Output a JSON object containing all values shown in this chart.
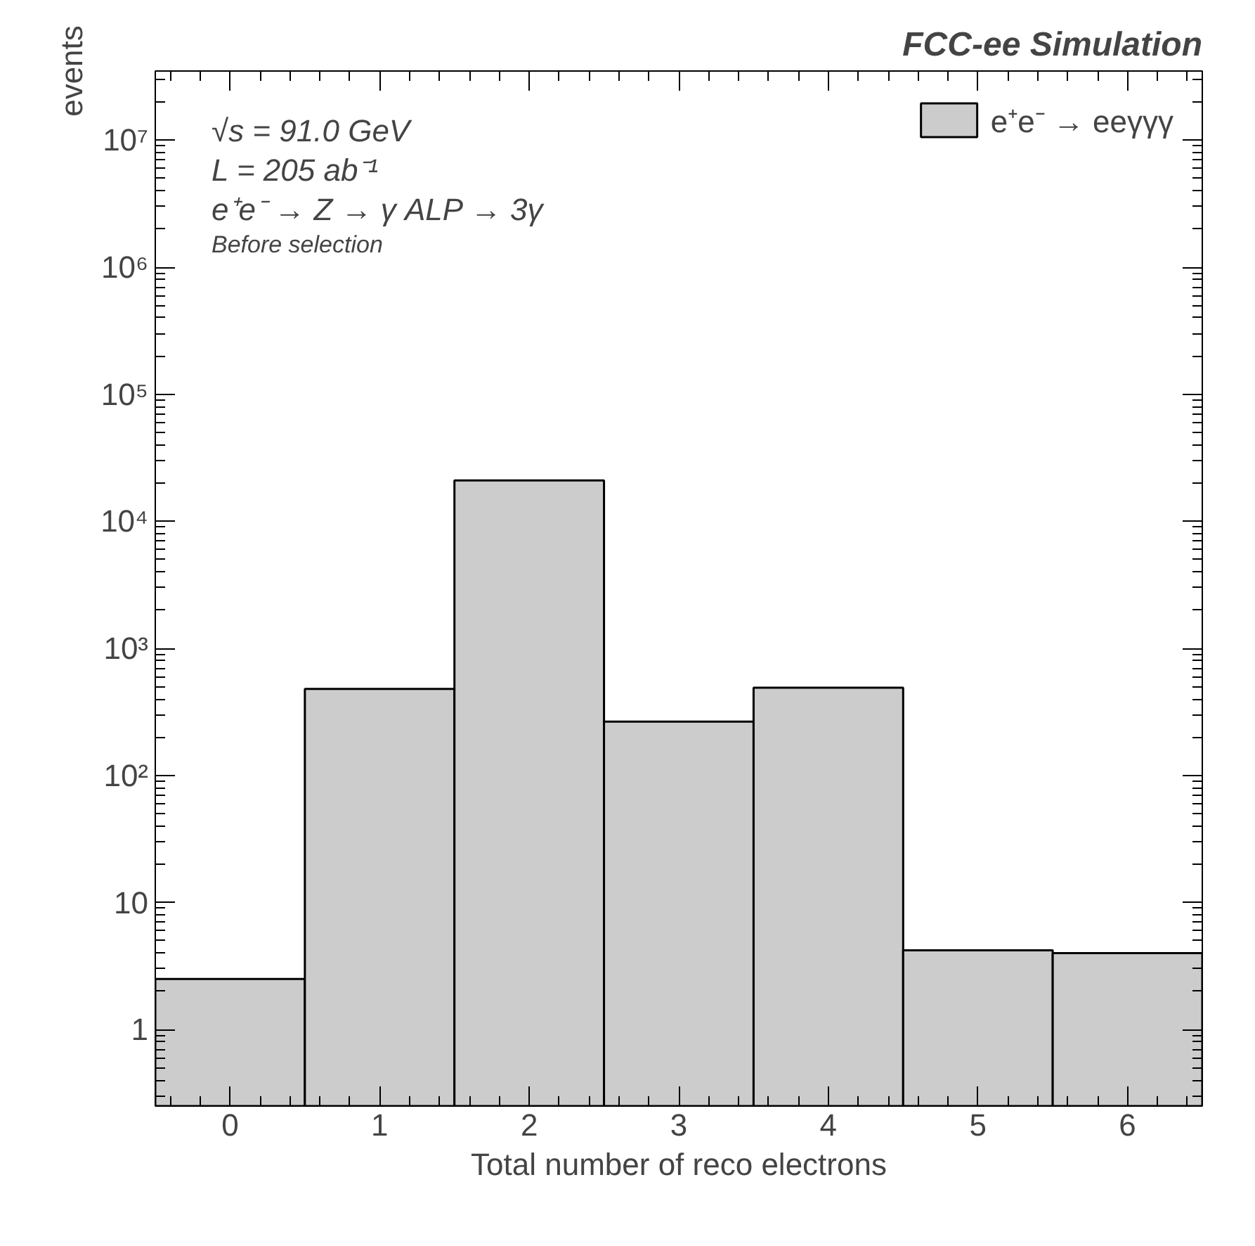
{
  "chart_data": {
    "type": "histogram",
    "title": "FCC-ee Simulation",
    "xlabel": "Total number of reco electrons",
    "ylabel": "events",
    "bins": [
      -0.5,
      0.5,
      1.5,
      2.5,
      3.5,
      4.5,
      5.5,
      6.5
    ],
    "series": [
      {
        "name": "e⁺e⁻ → eeγγγ",
        "color": "#cccccc",
        "values": [
          2.5,
          480,
          21000,
          265,
          490,
          4.2,
          4.0
        ]
      }
    ],
    "xlim": [
      -0.5,
      6.5
    ],
    "xticks": [
      0,
      1,
      2,
      3,
      4,
      5,
      6
    ],
    "ylim": [
      0.25,
      35000000
    ],
    "yticks": [
      1,
      10,
      {
        "value": 100,
        "label": "10²"
      },
      {
        "value": 1000,
        "label": "10³"
      },
      {
        "value": 10000,
        "label": "10⁴"
      },
      {
        "value": 100000,
        "label": "10⁵"
      },
      {
        "value": 1000000,
        "label": "10⁶"
      },
      {
        "value": 10000000,
        "label": "10⁷"
      }
    ],
    "log": "y",
    "legend": "top right",
    "annotations": [
      "√s = 91.0 GeV",
      "L = 205 ab⁻¹",
      "e⁺e⁻ → Z → γ ALP → 3γ",
      "Before selection"
    ]
  }
}
